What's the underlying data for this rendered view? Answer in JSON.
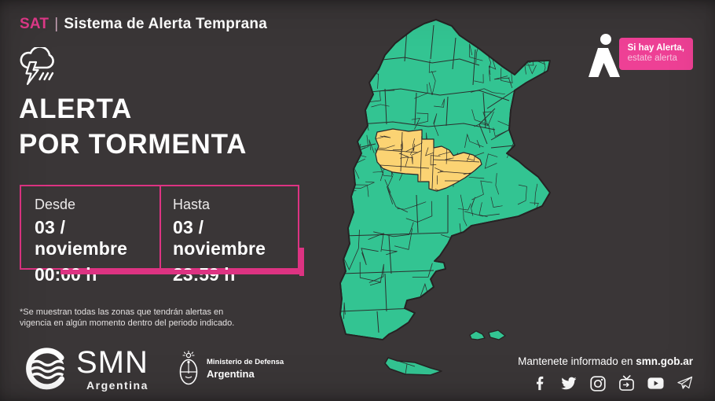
{
  "colors": {
    "background": "#3a3637",
    "accent_pink": "#e43a8b",
    "badge_pink": "#ee4095",
    "map_green": "#33c492",
    "alert_yellow": "#fbd373",
    "map_border": "#2a2627"
  },
  "header": {
    "brand": "SAT",
    "separator": "|",
    "title": "Sistema de Alerta Temprana"
  },
  "alert": {
    "icon": "storm-cloud-lightning-icon",
    "title_line1": "ALERTA",
    "title_line2": "POR TORMENTA"
  },
  "period": {
    "from": {
      "label": "Desde",
      "date": "03 / noviembre",
      "time": "00:00 h"
    },
    "to": {
      "label": "Hasta",
      "date": "03 / noviembre",
      "time": "23:59 h"
    }
  },
  "disclaimer": {
    "line1": "*Se muestran todas las zonas que tendrán alertas en",
    "line2": "vigencia en algún momento dentro del periodo indicado."
  },
  "badge": {
    "icon": "alert-person-icon",
    "line1": "Si hay Alerta,",
    "line2": "estate alerta"
  },
  "logos": {
    "smn": {
      "name": "SMN",
      "country": "Argentina"
    },
    "defensa": {
      "line1": "Ministerio de Defensa",
      "line2": "Argentina"
    }
  },
  "footer_right": {
    "text_prefix": "Mantenete informado en ",
    "site": "smn.gob.ar",
    "social": [
      "facebook-icon",
      "twitter-icon",
      "instagram-icon",
      "igtv-icon",
      "youtube-icon",
      "telegram-icon"
    ]
  },
  "map": {
    "country": "Argentina",
    "no_alert_color": "#33c492",
    "alert_color": "#fbd373",
    "alert_region": "central Argentina (San Juan, Mendoza, San Luis, south Córdoba, north La Pampa, west Buenos Aires)"
  }
}
